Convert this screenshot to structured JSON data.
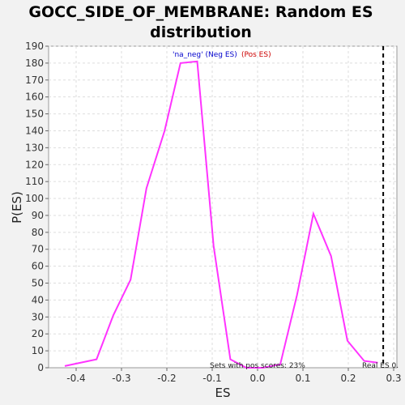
{
  "chart_data": {
    "type": "line",
    "title_line1": "GOCC_SIDE_OF_MEMBRANE: Random ES",
    "title_line2": "distribution",
    "xlabel": "ES",
    "ylabel": "P(ES)",
    "xlim": [
      -0.45,
      0.3
    ],
    "ylim": [
      0,
      190
    ],
    "x_ticks": [
      -0.4,
      -0.3,
      -0.2,
      -0.1,
      0.0,
      0.1,
      0.2,
      0.3
    ],
    "x_tick_labels": [
      "-0.4",
      "-0.3",
      "-0.2",
      "-0.1",
      "0.0",
      "0.1",
      "0.2",
      "0.3"
    ],
    "y_ticks": [
      0,
      10,
      20,
      30,
      40,
      50,
      60,
      70,
      80,
      90,
      100,
      110,
      120,
      130,
      140,
      150,
      160,
      170,
      180,
      190
    ],
    "grid": true,
    "series": [
      {
        "color": "#ff33ff",
        "x": [
          -0.425,
          -0.355,
          -0.318,
          -0.28,
          -0.245,
          -0.205,
          -0.17,
          -0.133,
          -0.097,
          -0.06,
          -0.025,
          0.012,
          0.05,
          0.087,
          0.123,
          0.162,
          0.198,
          0.235,
          0.265
        ],
        "y": [
          1,
          5,
          31,
          52,
          106,
          140,
          180,
          181,
          72,
          5,
          0,
          0,
          2,
          43,
          91,
          66,
          16,
          4,
          3
        ]
      }
    ],
    "legend_neg": "'na_neg' (Neg ES)",
    "legend_pos": "(Pos ES)",
    "annotation_sets": "Sets with pos scores: 23%",
    "real_es_label": "Real ES 0.",
    "real_es_value": 0.277,
    "colors": {
      "neg": "#0000cc",
      "pos": "#cc0000",
      "line": "#ff33ff",
      "grid": "#dddddd"
    }
  }
}
